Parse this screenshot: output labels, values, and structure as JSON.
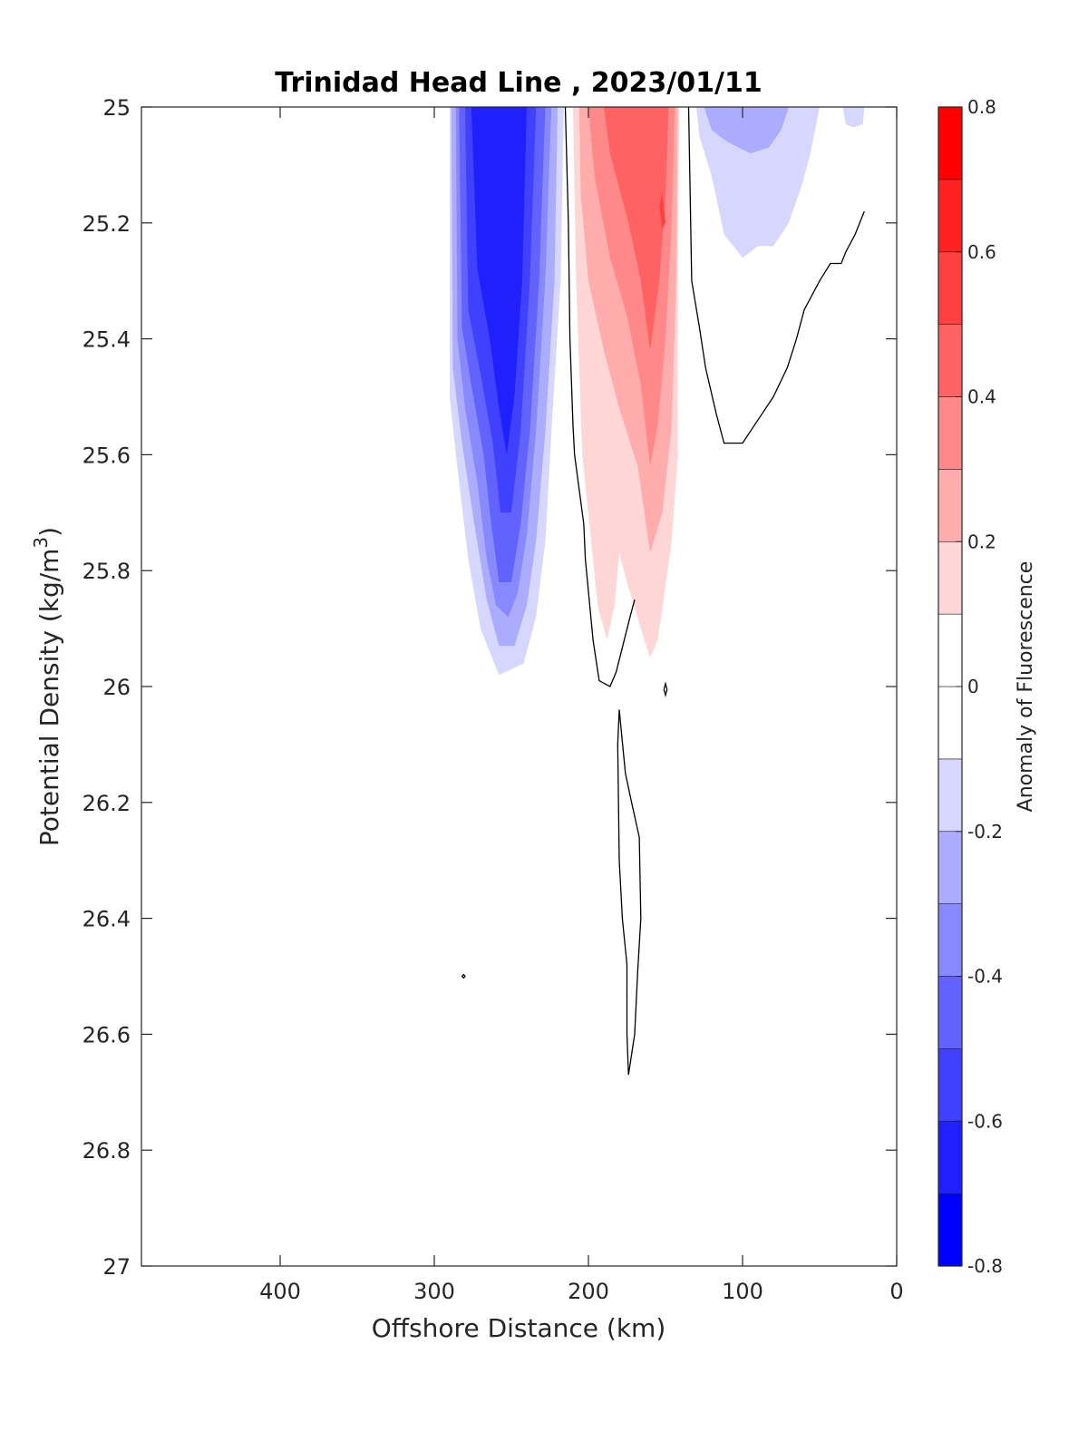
{
  "chart_data": {
    "type": "contour",
    "title": "Trinidad Head Line , 2023/01/11",
    "xlabel": "Offshore Distance (km)",
    "ylabel": "Potential Density (kg/m^3)",
    "xlim": [
      490,
      0
    ],
    "x_reversed": true,
    "ylim": [
      25,
      27
    ],
    "y_reversed": true,
    "x_ticks": [
      400,
      300,
      200,
      100,
      0
    ],
    "y_ticks": [
      25,
      25.2,
      25.4,
      25.6,
      25.8,
      26,
      26.2,
      26.4,
      26.6,
      26.8,
      27
    ],
    "y_tick_labels": [
      "25",
      "25.2",
      "25.4",
      "25.6",
      "25.8",
      "26",
      "26.2",
      "26.4",
      "26.6",
      "26.8",
      "27"
    ],
    "grid": false,
    "colorbar": {
      "label": "Anomaly of Fluorescence",
      "range": [
        -0.8,
        0.8
      ],
      "ticks": [
        0.8,
        0.6,
        0.4,
        0.2,
        0,
        -0.2,
        -0.4,
        -0.6,
        -0.8
      ],
      "tick_labels": [
        "0.8",
        "0.6",
        "0.4",
        "0.2",
        "0",
        "-0.2",
        "-0.4",
        "-0.6",
        "-0.8"
      ],
      "levels": [
        -0.8,
        -0.7,
        -0.6,
        -0.5,
        -0.4,
        -0.3,
        -0.2,
        -0.1,
        0.1,
        0.2,
        0.3,
        0.4,
        0.5,
        0.6,
        0.7,
        0.8
      ],
      "colors": [
        "#0000ff",
        "#2020ff",
        "#4040ff",
        "#6262ff",
        "#8989ff",
        "#acacff",
        "#d6d6ff",
        "#ffffff",
        "#ffffff",
        "#ffd6d6",
        "#ffacac",
        "#ff8989",
        "#ff6262",
        "#ff4040",
        "#ff2020",
        "#ff0000"
      ]
    },
    "features": [
      {
        "name": "negative anomaly core",
        "x_range": [
          290,
          215
        ],
        "y_range": [
          25,
          25.95
        ],
        "min_value": -0.7
      },
      {
        "name": "positive anomaly core",
        "x_range": [
          210,
          140
        ],
        "y_range": [
          25,
          25.95
        ],
        "max_value": 0.5
      },
      {
        "name": "weak negative surface patch",
        "x_range": [
          130,
          20
        ],
        "y_range": [
          25,
          25.25
        ],
        "min_value": -0.3
      }
    ]
  },
  "colors": {
    "contour_line": "#000000",
    "axis": "#262626"
  }
}
